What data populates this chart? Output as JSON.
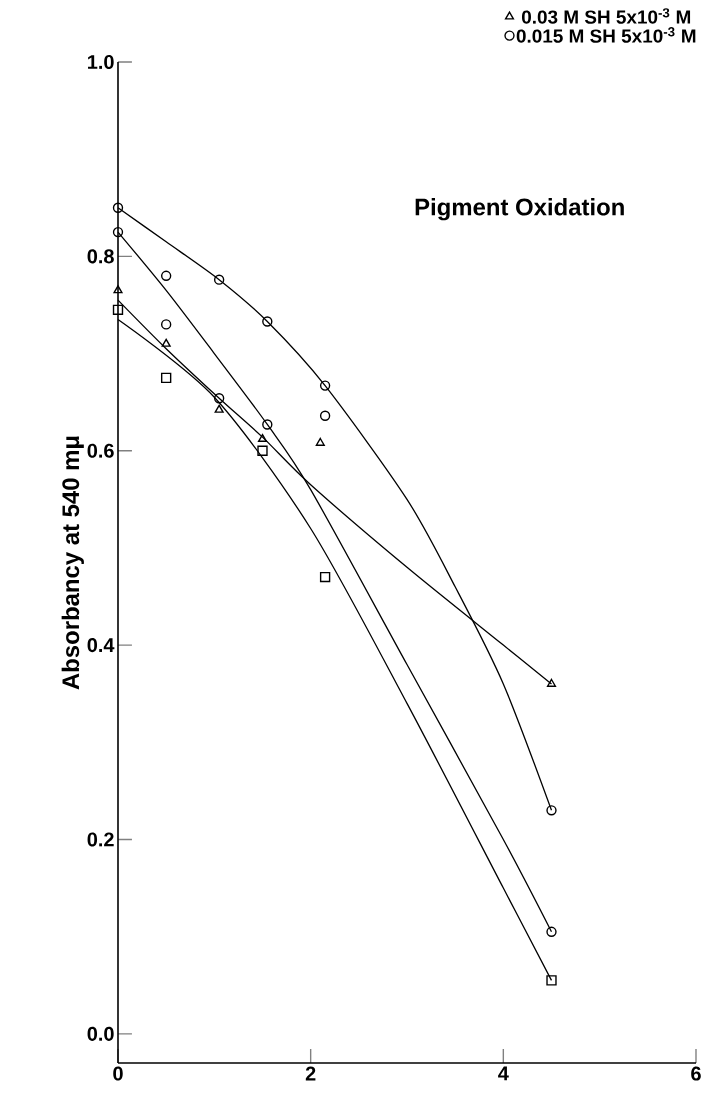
{
  "chart_data": {
    "type": "scatter",
    "title": "Pigment Oxidation",
    "ylabel": "Absorbancy at 540 mμ",
    "xlim": [
      0,
      6
    ],
    "ylim": [
      -0.03,
      1.0
    ],
    "xticks": [
      0,
      2,
      4,
      6
    ],
    "yticks": [
      {
        "value": 0,
        "label": "0.0"
      },
      0.2,
      0.4,
      0.6,
      0.8,
      {
        "value": 1,
        "label": "1.0"
      }
    ],
    "grid": false,
    "legend": "top right",
    "series": [
      {
        "name": "0.03 M SH 5x10$^{-3}$ M",
        "marker": "triangle",
        "color": "#000000",
        "x": [
          0,
          0.5,
          1.05,
          1.5,
          2.1,
          4.5
        ],
        "values": [
          0.765,
          0.71,
          0.642,
          0.612,
          0.608,
          0.36
        ]
      },
      {
        "name": "0.015 M SH 5x10$^{-3}$ M",
        "marker": "circle",
        "color": "#000000",
        "x": [
          0.5,
          1.05,
          1.55,
          2.15,
          4.5
        ],
        "values": [
          0.78,
          0.776,
          0.733,
          0.667,
          0.23
        ]
      },
      {
        "marker": "square",
        "color": "#000000",
        "x": [
          0,
          0.5,
          1.5,
          2.15,
          4.5
        ],
        "values": [
          0.745,
          0.675,
          0.6,
          0.47,
          0.055
        ]
      },
      {
        "marker": "circle",
        "color": "#000000",
        "x": [
          0,
          0,
          1.05,
          1.55,
          4.5,
          0.5,
          2.15
        ],
        "values": [
          0.85,
          0.825,
          0.654,
          0.627,
          0.105,
          0.73,
          0.636
        ]
      },
      {
        "type": "line",
        "marker": "none",
        "color": "#000000",
        "x": [
          0,
          0.5,
          1.05,
          1.55,
          2.15,
          3,
          3.5,
          4,
          4.5
        ],
        "values": [
          0.85,
          0.815,
          0.776,
          0.733,
          0.667,
          0.55,
          0.46,
          0.36,
          0.23
        ]
      },
      {
        "type": "line",
        "marker": "none",
        "color": "#000000",
        "x": [
          0,
          0.5,
          1,
          1.55,
          2,
          3,
          4,
          4.5
        ],
        "values": [
          0.825,
          0.765,
          0.7,
          0.627,
          0.56,
          0.38,
          0.2,
          0.105
        ]
      },
      {
        "type": "line",
        "marker": "none",
        "color": "#000000",
        "x": [
          0,
          0.5,
          1.05,
          1.5,
          2,
          3,
          4,
          4.5
        ],
        "values": [
          0.755,
          0.705,
          0.654,
          0.614,
          0.565,
          0.48,
          0.4,
          0.36
        ]
      },
      {
        "type": "line",
        "marker": "none",
        "color": "#000000",
        "x": [
          0,
          1,
          2,
          3,
          4,
          4.5
        ],
        "values": [
          0.735,
          0.655,
          0.52,
          0.34,
          0.15,
          0.055
        ]
      }
    ]
  }
}
